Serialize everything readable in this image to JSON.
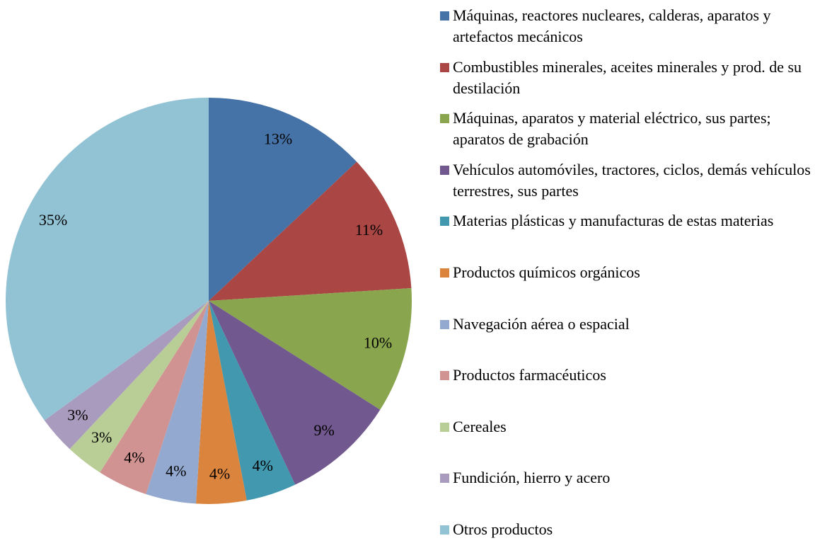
{
  "chart_data": {
    "type": "pie",
    "categories": [
      "Máquinas, reactores nucleares, calderas, aparatos y artefactos mecánicos",
      "Combustibles minerales, aceites minerales y prod. de su destilación",
      "Máquinas, aparatos y material eléctrico, sus partes; aparatos de grabación",
      "Vehículos automóviles, tractores, ciclos, demás vehículos terrestres, sus partes",
      "Materias plásticas y manufacturas de estas materias",
      "Productos químicos orgánicos",
      "Navegación aérea o espacial",
      "Productos farmacéuticos",
      "Cereales",
      "Fundición, hierro y acero",
      "Otros productos"
    ],
    "values": [
      13,
      11,
      10,
      9,
      4,
      4,
      4,
      4,
      3,
      3,
      35
    ],
    "value_labels": [
      "13%",
      "11%",
      "10%",
      "9%",
      "4%",
      "4%",
      "4%",
      "4%",
      "3%",
      "3%",
      "35%"
    ],
    "colors": [
      "#4572a7",
      "#aa4643",
      "#89a54e",
      "#71588f",
      "#4198af",
      "#db843d",
      "#93a9cf",
      "#d19392",
      "#b9cd96",
      "#a99bbd",
      "#92c3d4"
    ],
    "legend": "right"
  }
}
